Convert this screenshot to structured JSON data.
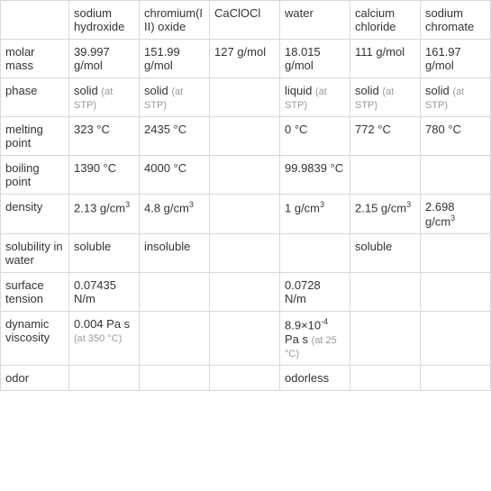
{
  "columns": [
    "",
    "sodium hydroxide",
    "chromium(III) oxide",
    "CaClOCl",
    "water",
    "calcium chloride",
    "sodium chromate"
  ],
  "rows": [
    {
      "label": "molar mass",
      "cells": [
        {
          "main": "39.997 g/mol"
        },
        {
          "main": "151.99 g/mol"
        },
        {
          "main": "127 g/mol"
        },
        {
          "main": "18.015 g/mol"
        },
        {
          "main": "111 g/mol"
        },
        {
          "main": "161.97 g/mol"
        }
      ]
    },
    {
      "label": "phase",
      "cells": [
        {
          "main": "solid",
          "secondary": "(at STP)"
        },
        {
          "main": "solid",
          "secondary": "(at STP)"
        },
        {
          "main": ""
        },
        {
          "main": "liquid",
          "secondary": "(at STP)"
        },
        {
          "main": "solid",
          "secondary": "(at STP)"
        },
        {
          "main": "solid",
          "secondary": "(at STP)"
        }
      ]
    },
    {
      "label": "melting point",
      "cells": [
        {
          "main": "323 °C"
        },
        {
          "main": "2435 °C"
        },
        {
          "main": ""
        },
        {
          "main": "0 °C"
        },
        {
          "main": "772 °C"
        },
        {
          "main": "780 °C"
        }
      ]
    },
    {
      "label": "boiling point",
      "cells": [
        {
          "main": "1390 °C"
        },
        {
          "main": "4000 °C"
        },
        {
          "main": ""
        },
        {
          "main": "99.9839 °C"
        },
        {
          "main": ""
        },
        {
          "main": ""
        }
      ]
    },
    {
      "label": "density",
      "cells": [
        {
          "main": "2.13 g/cm",
          "sup": "3"
        },
        {
          "main": "4.8 g/cm",
          "sup": "3"
        },
        {
          "main": ""
        },
        {
          "main": "1 g/cm",
          "sup": "3"
        },
        {
          "main": "2.15 g/cm",
          "sup": "3"
        },
        {
          "main": "2.698 g/cm",
          "sup": "3"
        }
      ]
    },
    {
      "label": "solubility in water",
      "cells": [
        {
          "main": "soluble"
        },
        {
          "main": "insoluble"
        },
        {
          "main": ""
        },
        {
          "main": ""
        },
        {
          "main": "soluble"
        },
        {
          "main": ""
        }
      ]
    },
    {
      "label": "surface tension",
      "cells": [
        {
          "main": "0.07435 N/m"
        },
        {
          "main": ""
        },
        {
          "main": ""
        },
        {
          "main": "0.0728 N/m"
        },
        {
          "main": ""
        },
        {
          "main": ""
        }
      ]
    },
    {
      "label": "dynamic viscosity",
      "cells": [
        {
          "main": "0.004 Pa s",
          "secondary": "(at 350 °C)"
        },
        {
          "main": ""
        },
        {
          "main": ""
        },
        {
          "special": "viscosity_water",
          "main_pre": "8.9×10",
          "sup": "-4",
          "main_post": " Pa s",
          "secondary": "(at 25 °C)"
        },
        {
          "main": ""
        },
        {
          "main": ""
        }
      ]
    },
    {
      "label": "odor",
      "cells": [
        {
          "main": ""
        },
        {
          "main": ""
        },
        {
          "main": ""
        },
        {
          "main": "odorless"
        },
        {
          "main": ""
        },
        {
          "main": ""
        }
      ]
    }
  ],
  "styling": {
    "border_color": "#d8d8d8",
    "text_color": "#333333",
    "secondary_color": "#999999",
    "background": "#ffffff",
    "font_size_main": 13,
    "font_size_secondary": 11
  }
}
